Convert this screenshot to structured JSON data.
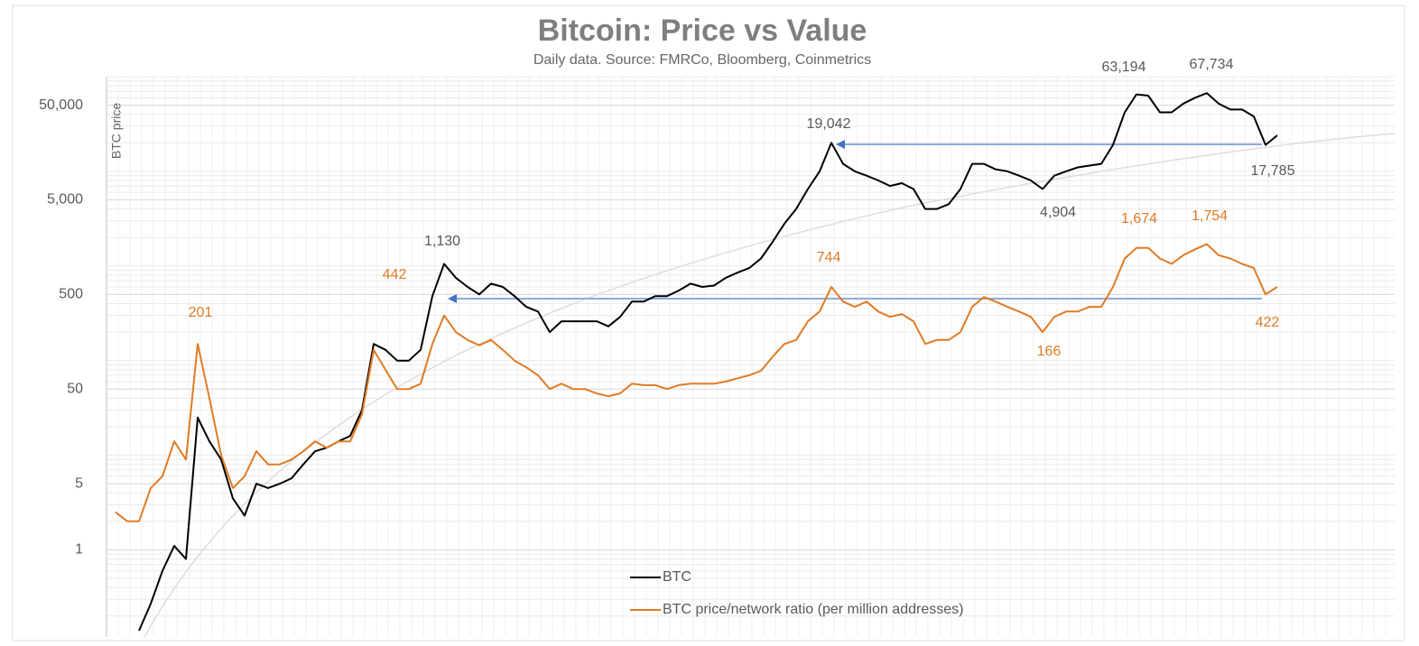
{
  "chart_data": {
    "type": "line",
    "title": "Bitcoin: Price vs Value",
    "subtitle": "Daily data.  Source: FMRCo, Bloomberg, Coinmetrics",
    "y_label": "BTC price",
    "log_y": true,
    "grid": true,
    "legend": "bottom",
    "categories": [
      null,
      null,
      null,
      null,
      null,
      null,
      null,
      null,
      null,
      null,
      null,
      null,
      null,
      null,
      null,
      null,
      null,
      null,
      null,
      null,
      null,
      null,
      null,
      null,
      null,
      null,
      null,
      null,
      null,
      null,
      null,
      null,
      null,
      null,
      null,
      null,
      null,
      null,
      null,
      null,
      null,
      null,
      null,
      null,
      null,
      null,
      null,
      null,
      null,
      null,
      null,
      null,
      null,
      null,
      null,
      null,
      null,
      null,
      null,
      null,
      null,
      null,
      null,
      null,
      null,
      null,
      null,
      null,
      null,
      null,
      null,
      null,
      null,
      null,
      null,
      null,
      null,
      null,
      null,
      null,
      null,
      null,
      null,
      null,
      null,
      null,
      null,
      null,
      null,
      null,
      null,
      null,
      null,
      null,
      null,
      null,
      null,
      null,
      null,
      null
    ],
    "ylim": [
      0.12,
      100000
    ],
    "yticks": [
      1,
      5,
      50,
      {
        "value": 500,
        "label": "500"
      },
      {
        "value": 5000,
        "label": "5,000"
      },
      {
        "value": 50000,
        "label": "50,000"
      }
    ],
    "series": [
      {
        "name": "BTC",
        "color": "#000000",
        "values": [
          null,
          null,
          0.14,
          0.27,
          0.6,
          1.1,
          0.8,
          25,
          14,
          9,
          3.5,
          2.3,
          5,
          4.5,
          5,
          5.7,
          8,
          11,
          12,
          14,
          16,
          30,
          150,
          130,
          100,
          100,
          130,
          480,
          1050,
          750,
          600,
          500,
          650,
          600,
          480,
          370,
          330,
          200,
          260,
          260,
          260,
          260,
          230,
          290,
          420,
          420,
          480,
          480,
          550,
          650,
          600,
          620,
          750,
          850,
          950,
          1200,
          1800,
          2800,
          4000,
          6500,
          10000,
          20000,
          12000,
          10000,
          9000,
          8000,
          7000,
          7500,
          6500,
          4000,
          4000,
          4500,
          6500,
          12000,
          12000,
          10500,
          10000,
          9000,
          8000,
          6500,
          9000,
          10000,
          11000,
          11500,
          12000,
          19000,
          42000,
          65000,
          63000,
          42000,
          42000,
          52000,
          60000,
          67000,
          52000,
          45000,
          45000,
          38000,
          19000,
          24000
        ]
      },
      {
        "name": "BTC price/network ratio (per million addresses)",
        "color": "#e07b24",
        "values": [
          2.5,
          2,
          2,
          4.5,
          6,
          14,
          9,
          150,
          40,
          10,
          4.5,
          6,
          11,
          8,
          8,
          9,
          11,
          14,
          12,
          14,
          14,
          27,
          130,
          80,
          50,
          50,
          57,
          150,
          300,
          200,
          165,
          145,
          165,
          130,
          100,
          85,
          70,
          50,
          57,
          50,
          50,
          45,
          42,
          45,
          57,
          55,
          55,
          50,
          55,
          57,
          57,
          57,
          60,
          65,
          70,
          78,
          110,
          150,
          165,
          260,
          330,
          600,
          420,
          370,
          420,
          330,
          290,
          310,
          260,
          150,
          165,
          165,
          200,
          370,
          470,
          420,
          370,
          330,
          290,
          200,
          290,
          330,
          330,
          370,
          370,
          600,
          1200,
          1550,
          1550,
          1200,
          1050,
          1300,
          1500,
          1700,
          1300,
          1200,
          1050,
          950,
          500,
          600
        ]
      }
    ],
    "annotations": [
      "201",
      "442",
      "1,130",
      "19,042",
      "744",
      "63,194",
      "67,734",
      "17,785",
      "4,904",
      "166",
      "1,674",
      "1,754",
      "422"
    ]
  }
}
